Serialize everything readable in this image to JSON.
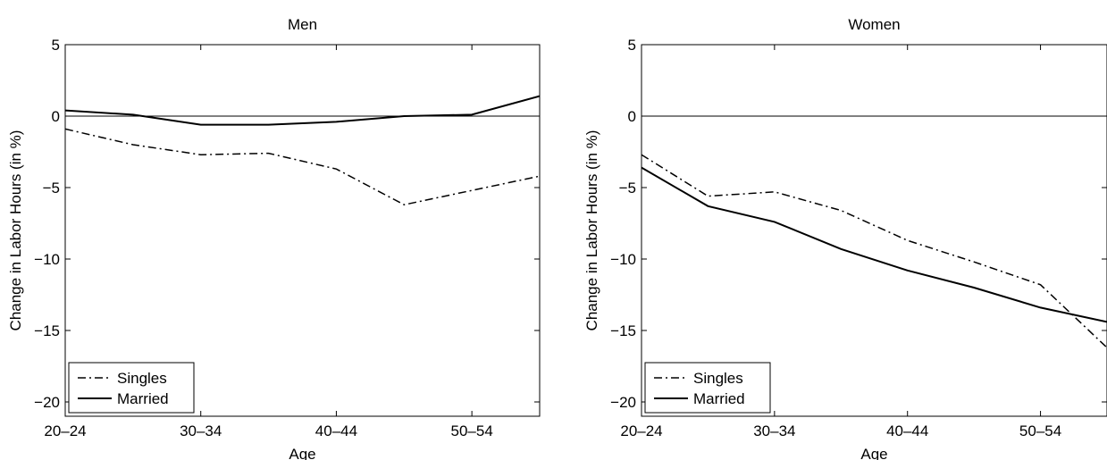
{
  "chart_data": [
    {
      "type": "line",
      "title": "Men",
      "xlabel": "Age",
      "ylabel": "Change in Labor Hours (in %)",
      "x": [
        1,
        2,
        3,
        4,
        5,
        6,
        7,
        8
      ],
      "xticks": [
        {
          "x": 1,
          "label": "20–24"
        },
        {
          "x": 3,
          "label": "30–34"
        },
        {
          "x": 5,
          "label": "40–44"
        },
        {
          "x": 7,
          "label": "50–54"
        }
      ],
      "yticks": [
        {
          "y": 5,
          "label": "5"
        },
        {
          "y": 0,
          "label": "0"
        },
        {
          "y": -5,
          "label": "−5"
        },
        {
          "y": -10,
          "label": "−10"
        },
        {
          "y": -15,
          "label": "−15"
        },
        {
          "y": -20,
          "label": "−20"
        }
      ],
      "xlim": [
        1,
        8
      ],
      "ylim": [
        -21,
        5
      ],
      "zero_line": true,
      "grid": false,
      "legend_position": "bottom-left",
      "series": [
        {
          "name": "Singles",
          "style": "dash-dot",
          "values": [
            -0.9,
            -2.0,
            -2.7,
            -2.6,
            -3.7,
            -6.2,
            -5.2,
            -4.2
          ]
        },
        {
          "name": "Married",
          "style": "solid",
          "values": [
            0.4,
            0.1,
            -0.6,
            -0.6,
            -0.4,
            0.0,
            0.1,
            1.4
          ]
        }
      ]
    },
    {
      "type": "line",
      "title": "Women",
      "xlabel": "Age",
      "ylabel": "Change in Labor Hours (in %)",
      "x": [
        1,
        2,
        3,
        4,
        5,
        6,
        7,
        8
      ],
      "xticks": [
        {
          "x": 1,
          "label": "20–24"
        },
        {
          "x": 3,
          "label": "30–34"
        },
        {
          "x": 5,
          "label": "40–44"
        },
        {
          "x": 7,
          "label": "50–54"
        }
      ],
      "yticks": [
        {
          "y": 5,
          "label": "5"
        },
        {
          "y": 0,
          "label": "0"
        },
        {
          "y": -5,
          "label": "−5"
        },
        {
          "y": -10,
          "label": "−10"
        },
        {
          "y": -15,
          "label": "−15"
        },
        {
          "y": -20,
          "label": "−20"
        }
      ],
      "xlim": [
        1,
        8
      ],
      "ylim": [
        -21,
        5
      ],
      "zero_line": true,
      "grid": false,
      "legend_position": "bottom-left",
      "series": [
        {
          "name": "Singles",
          "style": "dash-dot",
          "values": [
            -2.7,
            -5.6,
            -5.3,
            -6.6,
            -8.7,
            -10.2,
            -11.8,
            -16.2
          ]
        },
        {
          "name": "Married",
          "style": "solid",
          "values": [
            -3.6,
            -6.3,
            -7.4,
            -9.3,
            -10.8,
            -12.0,
            -13.4,
            -14.4
          ]
        }
      ]
    }
  ]
}
